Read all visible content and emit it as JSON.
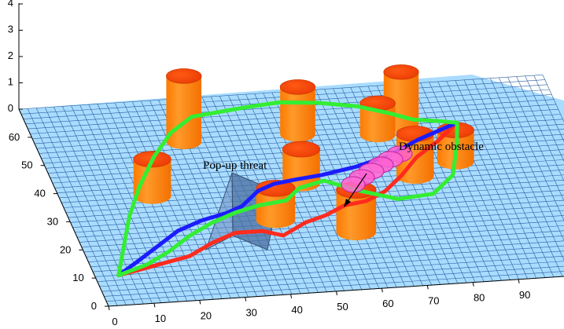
{
  "chart_data": {
    "type": "3d-surface",
    "title": "",
    "xlabel": "",
    "ylabel": "",
    "zlabel": "",
    "xlim": [
      0,
      100
    ],
    "ylim": [
      0,
      70
    ],
    "zlim": [
      0,
      4
    ],
    "x_ticks": [
      "0",
      "10",
      "20",
      "30",
      "40",
      "50",
      "60",
      "70",
      "80",
      "90"
    ],
    "y_ticks": [
      "0",
      "10",
      "20",
      "30",
      "40",
      "50",
      "60"
    ],
    "z_ticks": [
      "0",
      "1",
      "2",
      "3",
      "4"
    ],
    "grid": false,
    "annotations": [
      "Pop-up threat",
      "Dynamic obstacle"
    ],
    "obstacles": [
      {
        "x": 32,
        "y": 55,
        "height": 2.5
      },
      {
        "x": 57,
        "y": 55,
        "height": 1.8
      },
      {
        "x": 74,
        "y": 53,
        "height": 1.2
      },
      {
        "x": 80,
        "y": 56,
        "height": 2.0
      },
      {
        "x": 88,
        "y": 42,
        "height": 1.2
      },
      {
        "x": 78,
        "y": 38,
        "height": 1.6
      },
      {
        "x": 53,
        "y": 38,
        "height": 1.3
      },
      {
        "x": 20,
        "y": 37,
        "height": 1.4
      },
      {
        "x": 44,
        "y": 26,
        "height": 1.2
      },
      {
        "x": 60,
        "y": 20,
        "height": 1.6
      }
    ],
    "series": [
      {
        "color": "#ff2b1e",
        "x": [
          5,
          12,
          22,
          28,
          34,
          40,
          44,
          47,
          50,
          55,
          60,
          65,
          70,
          75,
          80,
          86,
          90,
          92
        ],
        "y": [
          10,
          12,
          15,
          19,
          22,
          22,
          20,
          22,
          24,
          26,
          29,
          30,
          33,
          38,
          44,
          49,
          53,
          55
        ]
      },
      {
        "color": "#1c1cff",
        "x": [
          5,
          10,
          16,
          22,
          28,
          34,
          38,
          41,
          43,
          47,
          52,
          58,
          66,
          74,
          82,
          88,
          92
        ],
        "y": [
          10,
          14,
          19,
          24,
          27,
          29,
          31,
          34,
          36,
          38,
          39,
          40,
          42,
          45,
          50,
          53,
          55
        ]
      },
      {
        "color": "#33ee33",
        "x": [
          5,
          9,
          13,
          18,
          24,
          30,
          36,
          42,
          48,
          56,
          64,
          72,
          78,
          83,
          88,
          92
        ],
        "y": [
          10,
          20,
          30,
          40,
          50,
          58,
          63,
          64,
          65,
          66,
          65,
          63,
          60,
          57,
          56,
          55
        ]
      },
      {
        "color": "#33ee33",
        "x": [
          5,
          12,
          18,
          24,
          30,
          36,
          42,
          48,
          52,
          58,
          64,
          72,
          80,
          86,
          90,
          92
        ],
        "y": [
          10,
          13,
          17,
          22,
          26,
          29,
          31,
          32,
          36,
          38,
          34,
          30,
          31,
          37,
          48,
          55
        ]
      }
    ]
  }
}
